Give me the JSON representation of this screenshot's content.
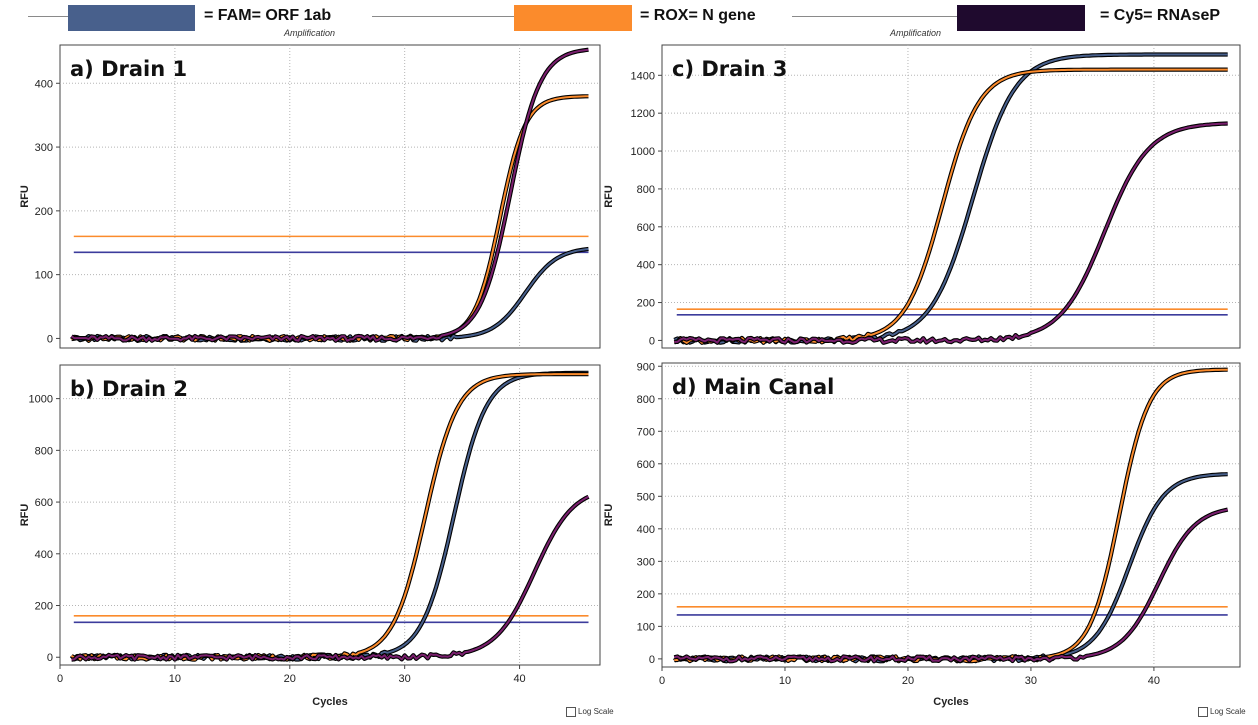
{
  "legend": {
    "items": [
      {
        "label": "= FAM= ORF 1ab",
        "color": "#48608c"
      },
      {
        "label": "= ROX= N gene",
        "color": "#fb8b2c"
      },
      {
        "label": "= Cy5= RNAseP",
        "color": "#1f0a2e"
      }
    ],
    "amp_left": "Amplification",
    "amp_right": "Amplification"
  },
  "log_scale_left": "Log Scale",
  "log_scale_right": "Log Scale",
  "chart_data": [
    {
      "type": "line",
      "title": "a) Drain 1",
      "xlabel": "",
      "ylabel": "RFU",
      "xlim": [
        0,
        47
      ],
      "ylim": [
        -15,
        460
      ],
      "xticks": [],
      "yticks": [
        0,
        100,
        200,
        300,
        400
      ],
      "thresholds": [
        {
          "name": "ROX threshold",
          "value": 160,
          "color": "#fb8b2c"
        },
        {
          "name": "FAM threshold",
          "value": 135,
          "color": "#3c3c9c"
        }
      ],
      "series": [
        {
          "color": "#48608c",
          "plateau": 143,
          "midpoint": 40.5,
          "slope": 1.4
        },
        {
          "color": "#fb8b2c",
          "plateau": 380,
          "midpoint": 38.3,
          "slope": 1.1
        },
        {
          "color": "#7a1f6e",
          "plateau": 455,
          "midpoint": 39.2,
          "slope": 1.3
        }
      ]
    },
    {
      "type": "line",
      "title": "c) Drain 3",
      "xlabel": "",
      "ylabel": "RFU",
      "xlim": [
        0,
        47
      ],
      "ylim": [
        -40,
        1560
      ],
      "xticks": [],
      "yticks": [
        0,
        200,
        400,
        600,
        800,
        1000,
        1200,
        1400
      ],
      "thresholds": [
        {
          "name": "ROX threshold",
          "value": 165,
          "color": "#fb8b2c"
        },
        {
          "name": "FAM threshold",
          "value": 135,
          "color": "#3c3c9c"
        }
      ],
      "series": [
        {
          "color": "#48608c",
          "plateau": 1510,
          "midpoint": 25.3,
          "slope": 1.7
        },
        {
          "color": "#fb8b2c",
          "plateau": 1430,
          "midpoint": 22.8,
          "slope": 1.5
        },
        {
          "color": "#7a1f6e",
          "plateau": 1150,
          "midpoint": 36.0,
          "slope": 1.8
        }
      ]
    },
    {
      "type": "line",
      "title": "b) Drain 2",
      "xlabel": "Cycles",
      "ylabel": "RFU",
      "xlim": [
        0,
        47
      ],
      "ylim": [
        -30,
        1130
      ],
      "xticks": [
        0,
        10,
        20,
        30,
        40
      ],
      "yticks": [
        0,
        200,
        400,
        600,
        800,
        1000
      ],
      "thresholds": [
        {
          "name": "ROX threshold",
          "value": 160,
          "color": "#fb8b2c"
        },
        {
          "name": "FAM threshold",
          "value": 135,
          "color": "#3c3c9c"
        }
      ],
      "series": [
        {
          "color": "#48608c",
          "plateau": 1100,
          "midpoint": 34.3,
          "slope": 1.4
        },
        {
          "color": "#fb8b2c",
          "plateau": 1095,
          "midpoint": 31.8,
          "slope": 1.4
        },
        {
          "color": "#7a1f6e",
          "plateau": 660,
          "midpoint": 41.3,
          "slope": 1.7
        }
      ]
    },
    {
      "type": "line",
      "title": "d) Main Canal",
      "xlabel": "Cycles",
      "ylabel": "RFU",
      "xlim": [
        0,
        47
      ],
      "ylim": [
        -25,
        910
      ],
      "xticks": [
        0,
        10,
        20,
        30,
        40
      ],
      "yticks": [
        0,
        100,
        200,
        300,
        400,
        500,
        600,
        700,
        800,
        900
      ],
      "thresholds": [
        {
          "name": "ROX threshold",
          "value": 160,
          "color": "#fb8b2c"
        },
        {
          "name": "FAM threshold",
          "value": 135,
          "color": "#3c3c9c"
        }
      ],
      "series": [
        {
          "color": "#48608c",
          "plateau": 570,
          "midpoint": 38.0,
          "slope": 1.4
        },
        {
          "color": "#fb8b2c",
          "plateau": 890,
          "midpoint": 37.2,
          "slope": 1.2
        },
        {
          "color": "#7a1f6e",
          "plateau": 470,
          "midpoint": 40.4,
          "slope": 1.5
        }
      ]
    }
  ]
}
